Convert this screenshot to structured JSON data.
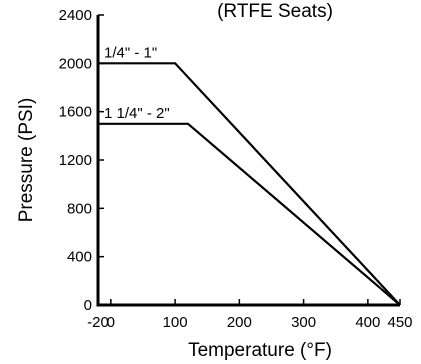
{
  "chart_data": {
    "type": "line",
    "title": "(RTFE Seats)",
    "xlabel": "Temperature (°F)",
    "ylabel": "Pressure (PSI)",
    "xlim": [
      -20,
      450
    ],
    "ylim": [
      0,
      2400
    ],
    "x_ticks": [
      {
        "value": -20,
        "label": "-20"
      },
      {
        "value": 0,
        "label": "0"
      },
      {
        "value": 100,
        "label": "100"
      },
      {
        "value": 200,
        "label": "200"
      },
      {
        "value": 300,
        "label": "300"
      },
      {
        "value": 400,
        "label": "400"
      },
      {
        "value": 450,
        "label": "450"
      }
    ],
    "y_ticks": [
      {
        "value": 0,
        "label": "0"
      },
      {
        "value": 400,
        "label": "400"
      },
      {
        "value": 800,
        "label": "800"
      },
      {
        "value": 1200,
        "label": "1200"
      },
      {
        "value": 1600,
        "label": "1600"
      },
      {
        "value": 2000,
        "label": "2000"
      },
      {
        "value": 2400,
        "label": "2400"
      }
    ],
    "grid": false,
    "legend": "inline",
    "series": [
      {
        "name": "1/4\" - 1\"",
        "points": [
          [
            -20,
            2000
          ],
          [
            100,
            2000
          ],
          [
            450,
            0
          ]
        ]
      },
      {
        "name": "1 1/4\" - 2\"",
        "points": [
          [
            -20,
            1500
          ],
          [
            120,
            1500
          ],
          [
            450,
            0
          ]
        ]
      }
    ],
    "colors": {
      "line": "#000000",
      "axis": "#000000",
      "background": "#ffffff"
    }
  }
}
